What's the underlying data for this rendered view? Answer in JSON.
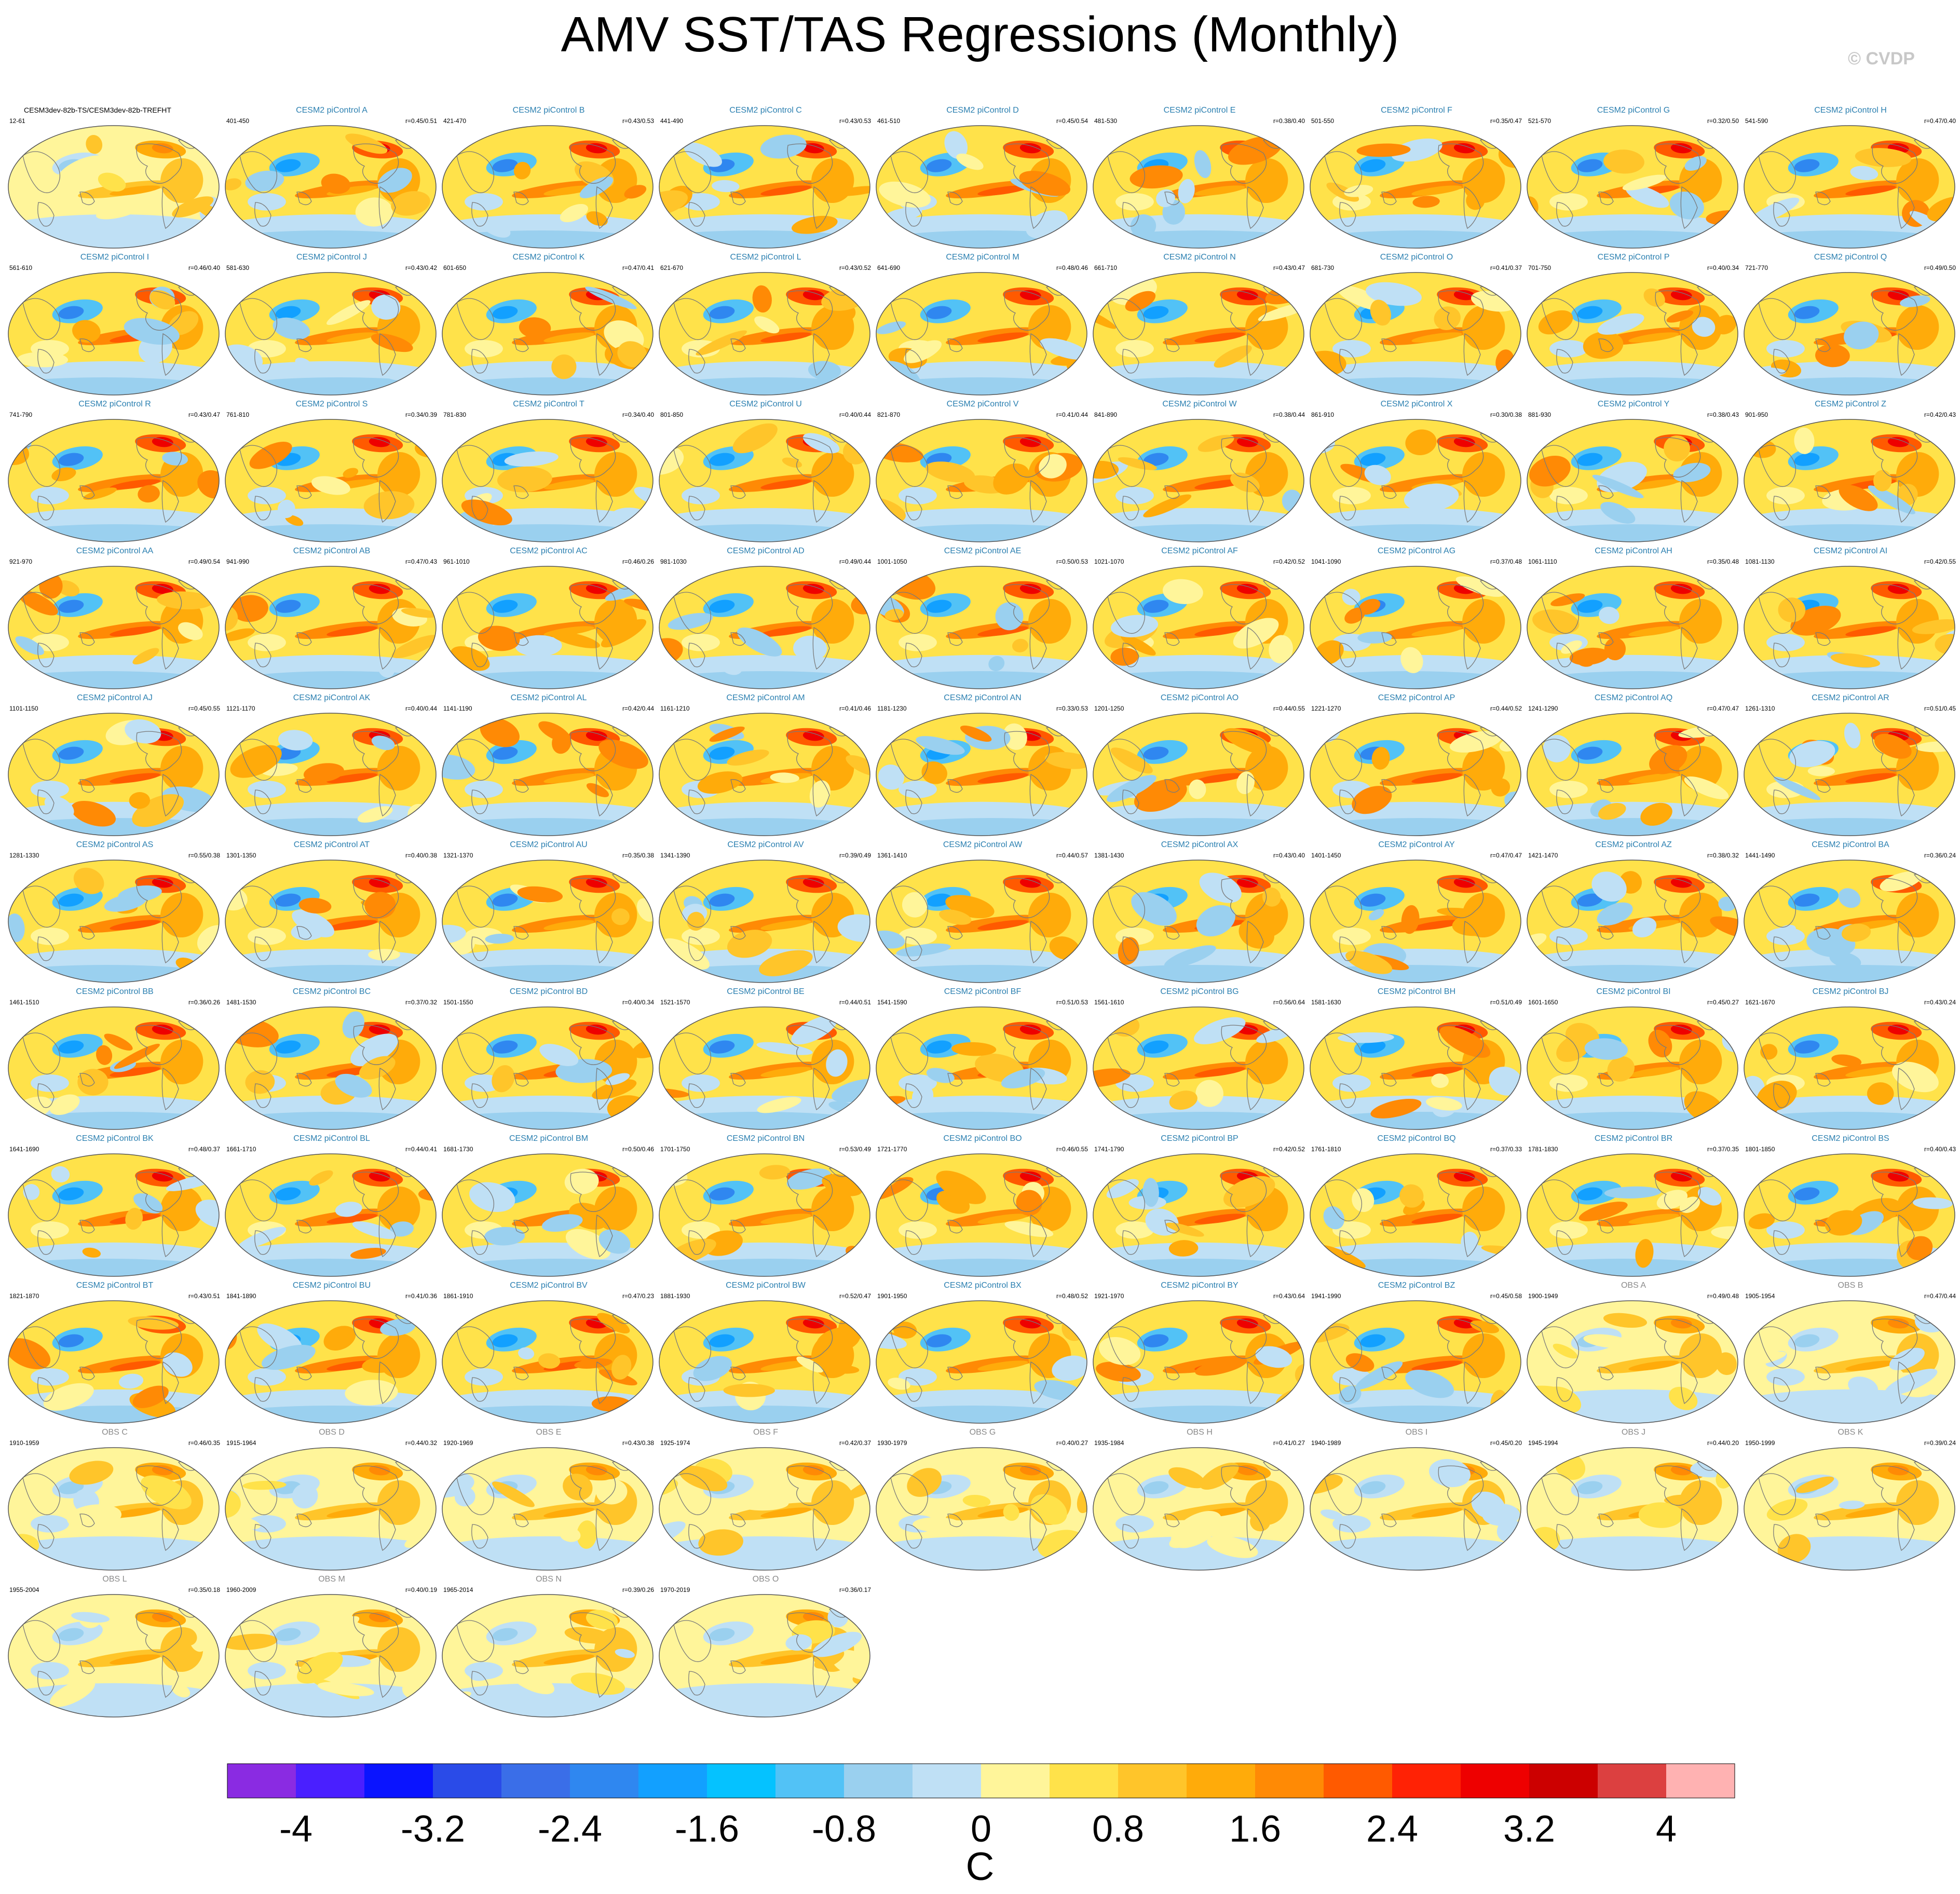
{
  "title": "AMV SST/TAS Regressions (Monthly)",
  "copyright": "© CVDP",
  "colorbar": {
    "unit": "C",
    "tick_labels": [
      "-4",
      "-3.2",
      "-2.4",
      "-1.6",
      "-0.8",
      "0",
      "0.8",
      "1.6",
      "2.4",
      "3.2",
      "4"
    ],
    "colors": [
      "#8a2be2",
      "#4a1fff",
      "#0a14ff",
      "#2a4be8",
      "#3a6ee8",
      "#2f87f0",
      "#12a0ff",
      "#05c2ff",
      "#52c2f6",
      "#9ad0ef",
      "#bfe0f5",
      "#fff59a",
      "#ffe24a",
      "#ffc52a",
      "#ffab0a",
      "#ff8a05",
      "#ff5a00",
      "#ff2205",
      "#ee0000",
      "#cc0000",
      "#dc4040",
      "#ffb2b2"
    ]
  },
  "panels": [
    {
      "name": "CESM3dev-82b-TS/CESM3dev-82b-TREFHT",
      "years": "12-61",
      "corr": "",
      "kind": "base"
    },
    {
      "name": "CESM2 piControl A",
      "years": "401-450",
      "corr": "r=0.45/0.51",
      "kind": "model"
    },
    {
      "name": "CESM2 piControl B",
      "years": "421-470",
      "corr": "r=0.43/0.53",
      "kind": "model"
    },
    {
      "name": "CESM2 piControl C",
      "years": "441-490",
      "corr": "r=0.43/0.53",
      "kind": "model"
    },
    {
      "name": "CESM2 piControl D",
      "years": "461-510",
      "corr": "r=0.45/0.54",
      "kind": "model"
    },
    {
      "name": "CESM2 piControl E",
      "years": "481-530",
      "corr": "r=0.38/0.40",
      "kind": "model"
    },
    {
      "name": "CESM2 piControl F",
      "years": "501-550",
      "corr": "r=0.35/0.47",
      "kind": "model"
    },
    {
      "name": "CESM2 piControl G",
      "years": "521-570",
      "corr": "r=0.32/0.50",
      "kind": "model"
    },
    {
      "name": "CESM2 piControl H",
      "years": "541-590",
      "corr": "r=0.47/0.40",
      "kind": "model"
    },
    {
      "name": "CESM2 piControl I",
      "years": "561-610",
      "corr": "r=0.46/0.40",
      "kind": "model"
    },
    {
      "name": "CESM2 piControl J",
      "years": "581-630",
      "corr": "r=0.43/0.42",
      "kind": "model"
    },
    {
      "name": "CESM2 piControl K",
      "years": "601-650",
      "corr": "r=0.47/0.41",
      "kind": "model"
    },
    {
      "name": "CESM2 piControl L",
      "years": "621-670",
      "corr": "r=0.43/0.52",
      "kind": "model"
    },
    {
      "name": "CESM2 piControl M",
      "years": "641-690",
      "corr": "r=0.48/0.46",
      "kind": "model"
    },
    {
      "name": "CESM2 piControl N",
      "years": "661-710",
      "corr": "r=0.43/0.47",
      "kind": "model"
    },
    {
      "name": "CESM2 piControl O",
      "years": "681-730",
      "corr": "r=0.41/0.37",
      "kind": "model"
    },
    {
      "name": "CESM2 piControl P",
      "years": "701-750",
      "corr": "r=0.40/0.34",
      "kind": "model"
    },
    {
      "name": "CESM2 piControl Q",
      "years": "721-770",
      "corr": "r=0.49/0.50",
      "kind": "model"
    },
    {
      "name": "CESM2 piControl R",
      "years": "741-790",
      "corr": "r=0.43/0.47",
      "kind": "model"
    },
    {
      "name": "CESM2 piControl S",
      "years": "761-810",
      "corr": "r=0.34/0.39",
      "kind": "model"
    },
    {
      "name": "CESM2 piControl T",
      "years": "781-830",
      "corr": "r=0.34/0.40",
      "kind": "model"
    },
    {
      "name": "CESM2 piControl U",
      "years": "801-850",
      "corr": "r=0.40/0.44",
      "kind": "model"
    },
    {
      "name": "CESM2 piControl V",
      "years": "821-870",
      "corr": "r=0.41/0.44",
      "kind": "model"
    },
    {
      "name": "CESM2 piControl W",
      "years": "841-890",
      "corr": "r=0.38/0.44",
      "kind": "model"
    },
    {
      "name": "CESM2 piControl X",
      "years": "861-910",
      "corr": "r=0.30/0.38",
      "kind": "model"
    },
    {
      "name": "CESM2 piControl Y",
      "years": "881-930",
      "corr": "r=0.38/0.43",
      "kind": "model"
    },
    {
      "name": "CESM2 piControl Z",
      "years": "901-950",
      "corr": "r=0.42/0.43",
      "kind": "model"
    },
    {
      "name": "CESM2 piControl AA",
      "years": "921-970",
      "corr": "r=0.49/0.54",
      "kind": "model"
    },
    {
      "name": "CESM2 piControl AB",
      "years": "941-990",
      "corr": "r=0.47/0.43",
      "kind": "model"
    },
    {
      "name": "CESM2 piControl AC",
      "years": "961-1010",
      "corr": "r=0.46/0.26",
      "kind": "model"
    },
    {
      "name": "CESM2 piControl AD",
      "years": "981-1030",
      "corr": "r=0.49/0.44",
      "kind": "model"
    },
    {
      "name": "CESM2 piControl AE",
      "years": "1001-1050",
      "corr": "r=0.50/0.53",
      "kind": "model"
    },
    {
      "name": "CESM2 piControl AF",
      "years": "1021-1070",
      "corr": "r=0.42/0.52",
      "kind": "model"
    },
    {
      "name": "CESM2 piControl AG",
      "years": "1041-1090",
      "corr": "r=0.37/0.48",
      "kind": "model"
    },
    {
      "name": "CESM2 piControl AH",
      "years": "1061-1110",
      "corr": "r=0.35/0.48",
      "kind": "model"
    },
    {
      "name": "CESM2 piControl AI",
      "years": "1081-1130",
      "corr": "r=0.42/0.55",
      "kind": "model"
    },
    {
      "name": "CESM2 piControl AJ",
      "years": "1101-1150",
      "corr": "r=0.45/0.55",
      "kind": "model"
    },
    {
      "name": "CESM2 piControl AK",
      "years": "1121-1170",
      "corr": "r=0.40/0.44",
      "kind": "model"
    },
    {
      "name": "CESM2 piControl AL",
      "years": "1141-1190",
      "corr": "r=0.42/0.44",
      "kind": "model"
    },
    {
      "name": "CESM2 piControl AM",
      "years": "1161-1210",
      "corr": "r=0.41/0.46",
      "kind": "model"
    },
    {
      "name": "CESM2 piControl AN",
      "years": "1181-1230",
      "corr": "r=0.33/0.53",
      "kind": "model"
    },
    {
      "name": "CESM2 piControl AO",
      "years": "1201-1250",
      "corr": "r=0.44/0.55",
      "kind": "model"
    },
    {
      "name": "CESM2 piControl AP",
      "years": "1221-1270",
      "corr": "r=0.44/0.52",
      "kind": "model"
    },
    {
      "name": "CESM2 piControl AQ",
      "years": "1241-1290",
      "corr": "r=0.47/0.47",
      "kind": "model"
    },
    {
      "name": "CESM2 piControl AR",
      "years": "1261-1310",
      "corr": "r=0.51/0.45",
      "kind": "model"
    },
    {
      "name": "CESM2 piControl AS",
      "years": "1281-1330",
      "corr": "r=0.55/0.38",
      "kind": "model"
    },
    {
      "name": "CESM2 piControl AT",
      "years": "1301-1350",
      "corr": "r=0.40/0.38",
      "kind": "model"
    },
    {
      "name": "CESM2 piControl AU",
      "years": "1321-1370",
      "corr": "r=0.35/0.38",
      "kind": "model"
    },
    {
      "name": "CESM2 piControl AV",
      "years": "1341-1390",
      "corr": "r=0.39/0.49",
      "kind": "model"
    },
    {
      "name": "CESM2 piControl AW",
      "years": "1361-1410",
      "corr": "r=0.44/0.57",
      "kind": "model"
    },
    {
      "name": "CESM2 piControl AX",
      "years": "1381-1430",
      "corr": "r=0.43/0.40",
      "kind": "model"
    },
    {
      "name": "CESM2 piControl AY",
      "years": "1401-1450",
      "corr": "r=0.47/0.47",
      "kind": "model"
    },
    {
      "name": "CESM2 piControl AZ",
      "years": "1421-1470",
      "corr": "r=0.38/0.32",
      "kind": "model"
    },
    {
      "name": "CESM2 piControl BA",
      "years": "1441-1490",
      "corr": "r=0.36/0.24",
      "kind": "model"
    },
    {
      "name": "CESM2 piControl BB",
      "years": "1461-1510",
      "corr": "r=0.36/0.26",
      "kind": "model"
    },
    {
      "name": "CESM2 piControl BC",
      "years": "1481-1530",
      "corr": "r=0.37/0.32",
      "kind": "model"
    },
    {
      "name": "CESM2 piControl BD",
      "years": "1501-1550",
      "corr": "r=0.40/0.34",
      "kind": "model"
    },
    {
      "name": "CESM2 piControl BE",
      "years": "1521-1570",
      "corr": "r=0.44/0.51",
      "kind": "model"
    },
    {
      "name": "CESM2 piControl BF",
      "years": "1541-1590",
      "corr": "r=0.51/0.53",
      "kind": "model"
    },
    {
      "name": "CESM2 piControl BG",
      "years": "1561-1610",
      "corr": "r=0.56/0.64",
      "kind": "model"
    },
    {
      "name": "CESM2 piControl BH",
      "years": "1581-1630",
      "corr": "r=0.51/0.49",
      "kind": "model"
    },
    {
      "name": "CESM2 piControl BI",
      "years": "1601-1650",
      "corr": "r=0.45/0.27",
      "kind": "model"
    },
    {
      "name": "CESM2 piControl BJ",
      "years": "1621-1670",
      "corr": "r=0.43/0.24",
      "kind": "model"
    },
    {
      "name": "CESM2 piControl BK",
      "years": "1641-1690",
      "corr": "r=0.48/0.37",
      "kind": "model"
    },
    {
      "name": "CESM2 piControl BL",
      "years": "1661-1710",
      "corr": "r=0.44/0.41",
      "kind": "model"
    },
    {
      "name": "CESM2 piControl BM",
      "years": "1681-1730",
      "corr": "r=0.50/0.46",
      "kind": "model"
    },
    {
      "name": "CESM2 piControl BN",
      "years": "1701-1750",
      "corr": "r=0.53/0.49",
      "kind": "model"
    },
    {
      "name": "CESM2 piControl BO",
      "years": "1721-1770",
      "corr": "r=0.46/0.55",
      "kind": "model"
    },
    {
      "name": "CESM2 piControl BP",
      "years": "1741-1790",
      "corr": "r=0.42/0.52",
      "kind": "model"
    },
    {
      "name": "CESM2 piControl BQ",
      "years": "1761-1810",
      "corr": "r=0.37/0.33",
      "kind": "model"
    },
    {
      "name": "CESM2 piControl BR",
      "years": "1781-1830",
      "corr": "r=0.37/0.35",
      "kind": "model"
    },
    {
      "name": "CESM2 piControl BS",
      "years": "1801-1850",
      "corr": "r=0.40/0.43",
      "kind": "model"
    },
    {
      "name": "CESM2 piControl BT",
      "years": "1821-1870",
      "corr": "r=0.43/0.51",
      "kind": "model"
    },
    {
      "name": "CESM2 piControl BU",
      "years": "1841-1890",
      "corr": "r=0.41/0.36",
      "kind": "model"
    },
    {
      "name": "CESM2 piControl BV",
      "years": "1861-1910",
      "corr": "r=0.47/0.23",
      "kind": "model"
    },
    {
      "name": "CESM2 piControl BW",
      "years": "1881-1930",
      "corr": "r=0.52/0.47",
      "kind": "model"
    },
    {
      "name": "CESM2 piControl BX",
      "years": "1901-1950",
      "corr": "r=0.48/0.52",
      "kind": "model"
    },
    {
      "name": "CESM2 piControl BY",
      "years": "1921-1970",
      "corr": "r=0.43/0.64",
      "kind": "model"
    },
    {
      "name": "CESM2 piControl BZ",
      "years": "1941-1990",
      "corr": "r=0.45/0.58",
      "kind": "model"
    },
    {
      "name": "OBS A",
      "years": "1900-1949",
      "corr": "r=0.49/0.48",
      "kind": "obs"
    },
    {
      "name": "OBS B",
      "years": "1905-1954",
      "corr": "r=0.47/0.44",
      "kind": "obs"
    },
    {
      "name": "OBS C",
      "years": "1910-1959",
      "corr": "r=0.46/0.35",
      "kind": "obs"
    },
    {
      "name": "OBS D",
      "years": "1915-1964",
      "corr": "r=0.44/0.32",
      "kind": "obs"
    },
    {
      "name": "OBS E",
      "years": "1920-1969",
      "corr": "r=0.43/0.38",
      "kind": "obs"
    },
    {
      "name": "OBS F",
      "years": "1925-1974",
      "corr": "r=0.42/0.37",
      "kind": "obs"
    },
    {
      "name": "OBS G",
      "years": "1930-1979",
      "corr": "r=0.40/0.27",
      "kind": "obs"
    },
    {
      "name": "OBS H",
      "years": "1935-1984",
      "corr": "r=0.41/0.27",
      "kind": "obs"
    },
    {
      "name": "OBS I",
      "years": "1940-1989",
      "corr": "r=0.45/0.20",
      "kind": "obs"
    },
    {
      "name": "OBS J",
      "years": "1945-1994",
      "corr": "r=0.44/0.20",
      "kind": "obs"
    },
    {
      "name": "OBS K",
      "years": "1950-1999",
      "corr": "r=0.39/0.24",
      "kind": "obs"
    },
    {
      "name": "OBS L",
      "years": "1955-2004",
      "corr": "r=0.35/0.18",
      "kind": "obs"
    },
    {
      "name": "OBS M",
      "years": "1960-2009",
      "corr": "r=0.40/0.19",
      "kind": "obs"
    },
    {
      "name": "OBS N",
      "years": "1965-2014",
      "corr": "r=0.39/0.26",
      "kind": "obs"
    },
    {
      "name": "OBS O",
      "years": "1970-2019",
      "corr": "r=0.36/0.17",
      "kind": "obs"
    }
  ]
}
